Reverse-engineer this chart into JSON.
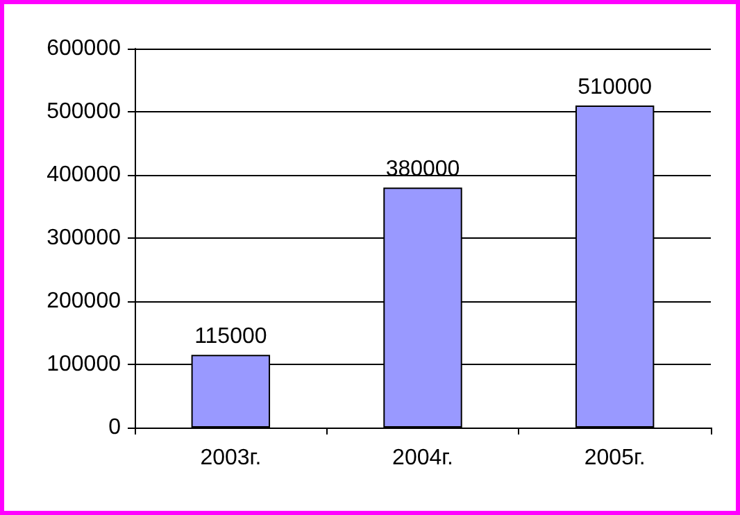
{
  "chart_data": {
    "type": "bar",
    "categories": [
      "2003г.",
      "2004г.",
      "2005г."
    ],
    "values": [
      115000,
      380000,
      510000
    ],
    "color": "#9999ff",
    "ylim": [
      0,
      600000
    ],
    "yticks": [
      0,
      100000,
      200000,
      300000,
      400000,
      500000,
      600000
    ],
    "grid": "y",
    "data_labels": true
  }
}
